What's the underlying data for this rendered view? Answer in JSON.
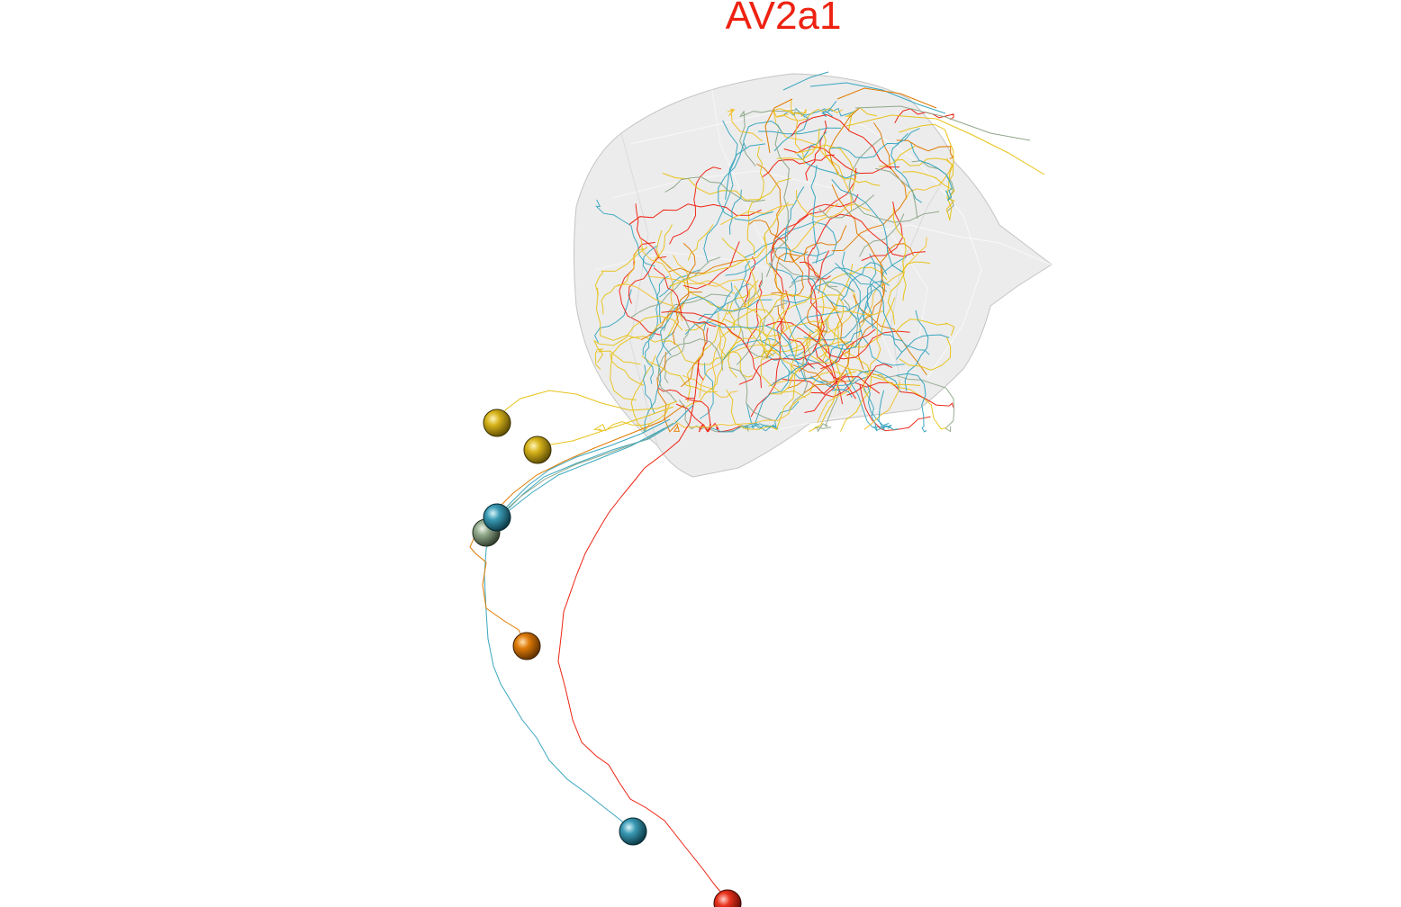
{
  "title": "AV2a1",
  "colors": {
    "title": "#ee2211",
    "mesh_fill": "#dcdcdc",
    "mesh_edge": "#c8c8c8",
    "neurons": {
      "red": "#ee2211",
      "orange": "#e07b00",
      "gold": "#e8c31a",
      "teal": "#3aa6bf",
      "sage": "#8fa88a",
      "yellow": "#f2c230"
    }
  },
  "neurons": [
    {
      "name": "neuron-red",
      "color": "red"
    },
    {
      "name": "neuron-orange",
      "color": "orange"
    },
    {
      "name": "neuron-gold-1",
      "color": "gold"
    },
    {
      "name": "neuron-gold-2",
      "color": "gold"
    },
    {
      "name": "neuron-teal-1",
      "color": "teal"
    },
    {
      "name": "neuron-teal-2",
      "color": "teal"
    },
    {
      "name": "neuron-sage",
      "color": "sage"
    }
  ]
}
